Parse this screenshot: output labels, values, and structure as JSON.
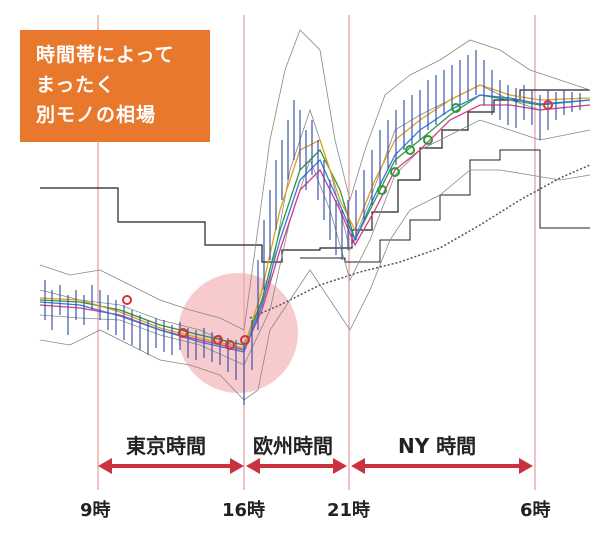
{
  "callout": {
    "lines": [
      "時間帯によって",
      "まったく",
      "別モノの相場"
    ],
    "bg_color": "#e8782b"
  },
  "sessions": [
    {
      "label": "東京時間",
      "from": "9時",
      "to": "16時"
    },
    {
      "label": "欧州時間",
      "from": "16時",
      "to": "21時"
    },
    {
      "label": "NY 時間",
      "from": "21時",
      "to": "6時"
    }
  ],
  "time_markers": [
    "9時",
    "16時",
    "21時",
    "6時"
  ],
  "colors": {
    "session_line": "#e89a9a",
    "arrow": "#c8333e",
    "highlight": "#f2a6ae",
    "candles": "#3c55a8"
  },
  "chart_data": {
    "type": "line",
    "title": "",
    "xlabel": "",
    "ylabel": "",
    "x_ticks": [
      "9時",
      "16時",
      "21時",
      "6時"
    ],
    "annotations": [
      "時間帯によって",
      "まったく",
      "別モノの相場"
    ],
    "grid": false
  }
}
